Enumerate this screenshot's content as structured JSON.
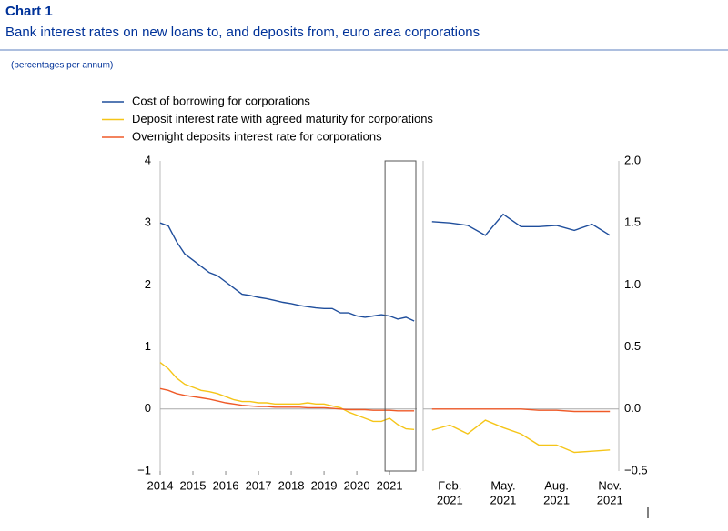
{
  "header": {
    "label": "Chart 1",
    "title": "Bank interest rates on new loans to, and deposits from, euro area corporations",
    "note": "(percentages per annum)"
  },
  "chart_data": [
    {
      "type": "line",
      "x": [
        2014,
        2014.25,
        2014.5,
        2014.75,
        2015,
        2015.25,
        2015.5,
        2015.75,
        2016,
        2016.25,
        2016.5,
        2016.75,
        2017,
        2017.25,
        2017.5,
        2017.75,
        2018,
        2018.25,
        2018.5,
        2018.75,
        2019,
        2019.25,
        2019.5,
        2019.75,
        2020,
        2020.25,
        2020.5,
        2020.75,
        2021,
        2021.25,
        2021.5,
        2021.75
      ],
      "series": [
        {
          "name": "Cost of borrowing for corporations",
          "color": "#1f4e9c",
          "values": [
            3.0,
            2.95,
            2.7,
            2.5,
            2.4,
            2.3,
            2.2,
            2.15,
            2.05,
            1.95,
            1.85,
            1.83,
            1.8,
            1.78,
            1.75,
            1.72,
            1.7,
            1.67,
            1.65,
            1.63,
            1.62,
            1.62,
            1.55,
            1.55,
            1.5,
            1.48,
            1.5,
            1.52,
            1.5,
            1.45,
            1.48,
            1.42
          ]
        },
        {
          "name": "Deposit interest rate with agreed maturity for corporations",
          "color": "#f5c518",
          "values": [
            0.75,
            0.65,
            0.5,
            0.4,
            0.35,
            0.3,
            0.28,
            0.25,
            0.2,
            0.15,
            0.12,
            0.12,
            0.1,
            0.1,
            0.08,
            0.08,
            0.08,
            0.08,
            0.1,
            0.08,
            0.08,
            0.05,
            0.02,
            -0.05,
            -0.1,
            -0.15,
            -0.2,
            -0.2,
            -0.15,
            -0.25,
            -0.32,
            -0.33
          ]
        },
        {
          "name": "Overnight deposits interest rate for corporations",
          "color": "#ef5a28",
          "values": [
            0.33,
            0.3,
            0.25,
            0.22,
            0.2,
            0.18,
            0.16,
            0.13,
            0.1,
            0.08,
            0.06,
            0.05,
            0.04,
            0.04,
            0.03,
            0.03,
            0.03,
            0.03,
            0.02,
            0.02,
            0.02,
            0.01,
            0.0,
            -0.01,
            -0.01,
            -0.01,
            -0.02,
            -0.02,
            -0.02,
            -0.03,
            -0.03,
            -0.03
          ]
        }
      ],
      "xlim": [
        2014,
        2021.83
      ],
      "xticks": [
        2014,
        2015,
        2016,
        2017,
        2018,
        2019,
        2020,
        2021
      ],
      "ylim": [
        -1,
        4
      ],
      "yticks": [
        {
          "value": -1,
          "label": "−1"
        },
        0,
        1,
        2,
        3,
        4
      ],
      "grid": "zero"
    },
    {
      "type": "line",
      "categories": [
        null,
        [
          "Feb.",
          "2021"
        ],
        null,
        null,
        [
          "May.",
          "2021"
        ],
        null,
        null,
        [
          "Aug.",
          "2021"
        ],
        null,
        null,
        [
          "Nov.",
          "2021"
        ]
      ],
      "series": [
        {
          "color": "#1f4e9c",
          "axis": "y2",
          "values": [
            1.51,
            1.5,
            1.48,
            1.4,
            1.57,
            1.47,
            1.47,
            1.48,
            1.44,
            1.49,
            1.4
          ]
        },
        {
          "color": "#f5c518",
          "axis": "y2",
          "values": [
            -0.17,
            -0.13,
            -0.2,
            -0.09,
            -0.15,
            -0.2,
            -0.29,
            -0.29,
            -0.35,
            -0.34,
            -0.33
          ]
        },
        {
          "color": "#ef5a28",
          "axis": "y2",
          "values": [
            0,
            0,
            0,
            0,
            0,
            0,
            -0.01,
            -0.01,
            -0.02,
            -0.02,
            -0.02
          ]
        }
      ],
      "y2lim": [
        -0.5,
        2.0
      ],
      "y2ticks": [
        {
          "value": -0.5,
          "label": "−0.5"
        },
        {
          "value": 0,
          "label": "0.0"
        },
        {
          "value": 0.5,
          "label": "0.5"
        },
        {
          "value": 1,
          "label": "1.0"
        },
        {
          "value": 1.5,
          "label": "1.5"
        },
        {
          "value": 2,
          "label": "2.0"
        }
      ],
      "grid": "zero"
    }
  ]
}
